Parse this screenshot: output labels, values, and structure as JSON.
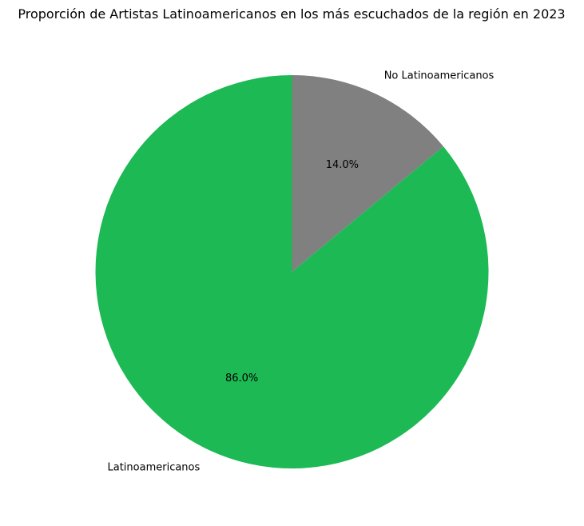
{
  "chart_data": {
    "type": "pie",
    "title": "Proporción de Artistas Latinoamericanos en los más escuchados de la región en 2023",
    "slices": [
      {
        "label": "No Latinoamericanos",
        "value": 14.0,
        "pct_label": "14.0%",
        "color": "#808080"
      },
      {
        "label": "Latinoamericanos",
        "value": 86.0,
        "pct_label": "86.0%",
        "color": "#1db954"
      }
    ],
    "start_angle_deg": 90,
    "direction": "clockwise",
    "legend": "none"
  }
}
